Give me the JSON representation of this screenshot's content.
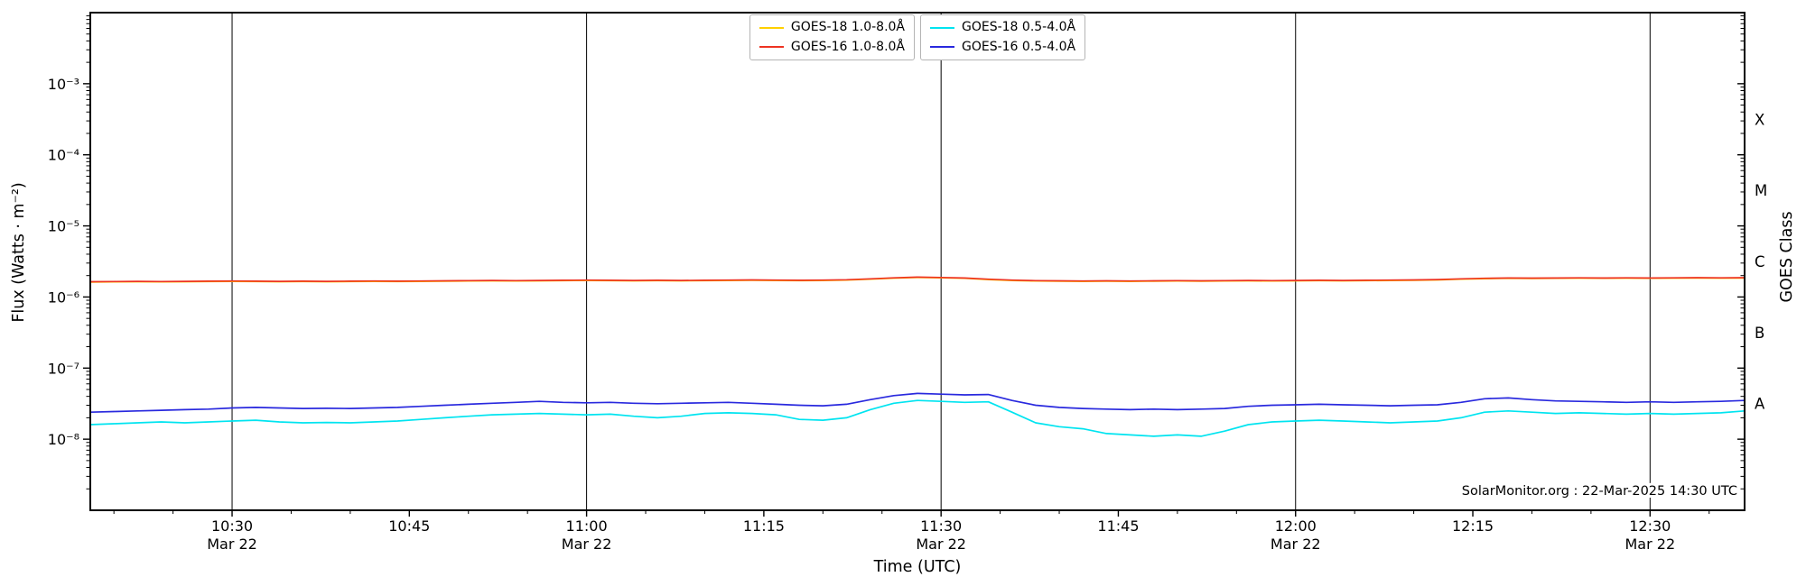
{
  "chart_data": {
    "type": "line",
    "xlabel": "Time (UTC)",
    "ylabel": "Flux (Watts · m⁻²)",
    "ylabel_right": "GOES Class",
    "annotation": "SolarMonitor.org : 22-Mar-2025 14:30 UTC",
    "yscale": "log",
    "ylim": [
      1e-09,
      0.01
    ],
    "xlim": [
      18,
      158
    ],
    "x_unit": "minutes after 10:00 UTC",
    "x": [
      18,
      20,
      22,
      24,
      26,
      28,
      30,
      32,
      34,
      36,
      38,
      40,
      42,
      44,
      46,
      48,
      50,
      52,
      54,
      56,
      58,
      60,
      62,
      64,
      66,
      68,
      70,
      72,
      74,
      76,
      78,
      80,
      82,
      84,
      86,
      88,
      90,
      92,
      94,
      96,
      98,
      100,
      102,
      104,
      106,
      108,
      110,
      112,
      114,
      116,
      118,
      120,
      122,
      124,
      126,
      128,
      130,
      132,
      134,
      136,
      138,
      140,
      142,
      144,
      146,
      148,
      150,
      152,
      154,
      156,
      158
    ],
    "series": [
      {
        "name": "GOES-18 1.0-8.0Å",
        "color": "#ffd000",
        "scale": 1e-06,
        "values": [
          1.62,
          1.63,
          1.64,
          1.63,
          1.64,
          1.65,
          1.66,
          1.65,
          1.64,
          1.65,
          1.64,
          1.65,
          1.66,
          1.65,
          1.66,
          1.67,
          1.68,
          1.69,
          1.68,
          1.69,
          1.7,
          1.71,
          1.7,
          1.69,
          1.7,
          1.69,
          1.7,
          1.71,
          1.72,
          1.71,
          1.7,
          1.71,
          1.73,
          1.78,
          1.84,
          1.88,
          1.86,
          1.83,
          1.76,
          1.71,
          1.68,
          1.67,
          1.66,
          1.67,
          1.66,
          1.67,
          1.68,
          1.67,
          1.68,
          1.69,
          1.68,
          1.69,
          1.7,
          1.69,
          1.7,
          1.71,
          1.72,
          1.74,
          1.78,
          1.81,
          1.83,
          1.82,
          1.83,
          1.84,
          1.83,
          1.84,
          1.83,
          1.84,
          1.85,
          1.84,
          1.85
        ]
      },
      {
        "name": "GOES-16 1.0-8.0Å",
        "color": "#ee3322",
        "scale": 1e-06,
        "values": [
          1.64,
          1.65,
          1.66,
          1.65,
          1.66,
          1.67,
          1.68,
          1.67,
          1.66,
          1.67,
          1.66,
          1.67,
          1.68,
          1.67,
          1.68,
          1.69,
          1.7,
          1.71,
          1.7,
          1.71,
          1.72,
          1.73,
          1.72,
          1.71,
          1.72,
          1.71,
          1.72,
          1.73,
          1.74,
          1.73,
          1.72,
          1.73,
          1.75,
          1.8,
          1.86,
          1.9,
          1.88,
          1.85,
          1.78,
          1.73,
          1.7,
          1.69,
          1.68,
          1.69,
          1.68,
          1.69,
          1.7,
          1.69,
          1.7,
          1.71,
          1.7,
          1.71,
          1.72,
          1.71,
          1.72,
          1.73,
          1.74,
          1.76,
          1.8,
          1.83,
          1.85,
          1.84,
          1.85,
          1.86,
          1.85,
          1.86,
          1.85,
          1.86,
          1.87,
          1.86,
          1.87
        ]
      },
      {
        "name": "GOES-18 0.5-4.0Å",
        "color": "#00e4f0",
        "scale": 1e-08,
        "values": [
          1.6,
          1.65,
          1.7,
          1.75,
          1.7,
          1.75,
          1.8,
          1.85,
          1.75,
          1.7,
          1.72,
          1.7,
          1.75,
          1.8,
          1.9,
          2.0,
          2.1,
          2.2,
          2.25,
          2.3,
          2.25,
          2.2,
          2.25,
          2.1,
          2.0,
          2.1,
          2.3,
          2.35,
          2.3,
          2.2,
          1.9,
          1.85,
          2.0,
          2.6,
          3.2,
          3.5,
          3.4,
          3.3,
          3.35,
          2.4,
          1.7,
          1.5,
          1.4,
          1.2,
          1.15,
          1.1,
          1.15,
          1.1,
          1.3,
          1.6,
          1.75,
          1.8,
          1.85,
          1.8,
          1.75,
          1.7,
          1.75,
          1.8,
          2.0,
          2.4,
          2.5,
          2.4,
          2.3,
          2.35,
          2.3,
          2.25,
          2.3,
          2.25,
          2.3,
          2.35,
          2.5
        ]
      },
      {
        "name": "GOES-16 0.5-4.0Å",
        "color": "#2929de",
        "scale": 1e-08,
        "values": [
          2.4,
          2.45,
          2.5,
          2.55,
          2.6,
          2.65,
          2.75,
          2.8,
          2.75,
          2.7,
          2.72,
          2.7,
          2.75,
          2.8,
          2.9,
          3.0,
          3.1,
          3.2,
          3.3,
          3.4,
          3.3,
          3.25,
          3.3,
          3.2,
          3.15,
          3.2,
          3.25,
          3.3,
          3.2,
          3.1,
          3.0,
          2.95,
          3.1,
          3.6,
          4.1,
          4.4,
          4.3,
          4.2,
          4.25,
          3.5,
          3.0,
          2.8,
          2.7,
          2.65,
          2.6,
          2.65,
          2.6,
          2.65,
          2.7,
          2.9,
          3.0,
          3.05,
          3.1,
          3.05,
          3.0,
          2.95,
          3.0,
          3.05,
          3.3,
          3.7,
          3.8,
          3.6,
          3.45,
          3.4,
          3.35,
          3.3,
          3.35,
          3.3,
          3.35,
          3.4,
          3.5
        ]
      }
    ],
    "legend_groups": [
      [
        0,
        1
      ],
      [
        2,
        3
      ]
    ],
    "x_major_ticks": [
      {
        "t": 30,
        "label": "10:30",
        "date": "Mar 22"
      },
      {
        "t": 45,
        "label": "10:45",
        "date": ""
      },
      {
        "t": 60,
        "label": "11:00",
        "date": "Mar 22"
      },
      {
        "t": 75,
        "label": "11:15",
        "date": ""
      },
      {
        "t": 90,
        "label": "11:30",
        "date": "Mar 22"
      },
      {
        "t": 105,
        "label": "11:45",
        "date": ""
      },
      {
        "t": 120,
        "label": "12:00",
        "date": "Mar 22"
      },
      {
        "t": 135,
        "label": "12:15",
        "date": ""
      },
      {
        "t": 150,
        "label": "12:30",
        "date": "Mar 22"
      }
    ],
    "gridlines_x": [
      30,
      60,
      90,
      120,
      150
    ],
    "y_ticks": [
      {
        "v": 0.001,
        "label": "10⁻³"
      },
      {
        "v": 0.0001,
        "label": "10⁻⁴"
      },
      {
        "v": 1e-05,
        "label": "10⁻⁵"
      },
      {
        "v": 1e-06,
        "label": "10⁻⁶"
      },
      {
        "v": 1e-07,
        "label": "10⁻⁷"
      },
      {
        "v": 1e-08,
        "label": "10⁻⁸"
      }
    ],
    "goes_classes": [
      {
        "label": "X",
        "flux": 0.0003162
      },
      {
        "label": "M",
        "flux": 3.162e-05
      },
      {
        "label": "C",
        "flux": 3.162e-06
      },
      {
        "label": "B",
        "flux": 3.162e-07
      },
      {
        "label": "A",
        "flux": 3.162e-08
      }
    ]
  }
}
